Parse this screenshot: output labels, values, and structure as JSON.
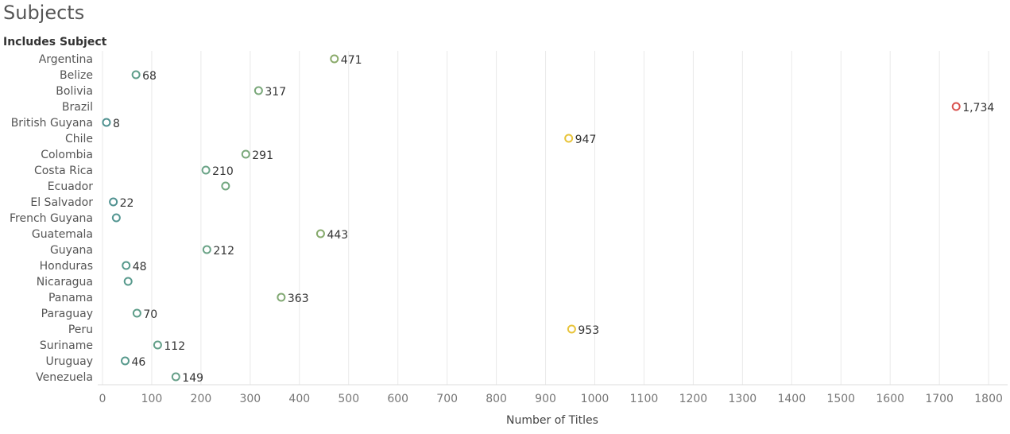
{
  "page_title": "Subjects",
  "chart_data": {
    "type": "scatter",
    "row_header": "Includes Subject",
    "xlabel": "Number of Titles",
    "xlim": [
      0,
      1820
    ],
    "xticks": [
      "0",
      "100",
      "200",
      "300",
      "400",
      "500",
      "600",
      "700",
      "800",
      "900",
      "1000",
      "1100",
      "1200",
      "1300",
      "1400",
      "1500",
      "1600",
      "1700",
      "1800"
    ],
    "grid": true,
    "categories": [
      "Argentina",
      "Belize",
      "Bolivia",
      "Brazil",
      "British Guyana",
      "Chile",
      "Colombia",
      "Costa Rica",
      "Ecuador",
      "El Salvador",
      "French Guyana",
      "Guatemala",
      "Guyana",
      "Honduras",
      "Nicaragua",
      "Panama",
      "Paraguay",
      "Peru",
      "Suriname",
      "Uruguay",
      "Venezuela"
    ],
    "values": [
      471,
      68,
      317,
      1734,
      8,
      947,
      291,
      210,
      250,
      22,
      28,
      443,
      212,
      48,
      52,
      363,
      70,
      953,
      112,
      46,
      149
    ],
    "data_labels": [
      "471",
      "68",
      "317",
      "1,734",
      "8",
      "947",
      "291",
      "210",
      "",
      "22",
      "",
      "443",
      "212",
      "48",
      "",
      "363",
      "70",
      "953",
      "112",
      "46",
      "149"
    ],
    "colors": [
      "#8aaa6a",
      "#5f9e8a",
      "#7aa87a",
      "#d9534f",
      "#4f9190",
      "#e8c43a",
      "#7aa87a",
      "#6aa387",
      "#72a77f",
      "#4f9190",
      "#549692",
      "#86aa6c",
      "#6aa387",
      "#589a8d",
      "#589a8d",
      "#82a974",
      "#5f9e8a",
      "#e8c43a",
      "#629f88",
      "#589a8d",
      "#669f88"
    ]
  }
}
